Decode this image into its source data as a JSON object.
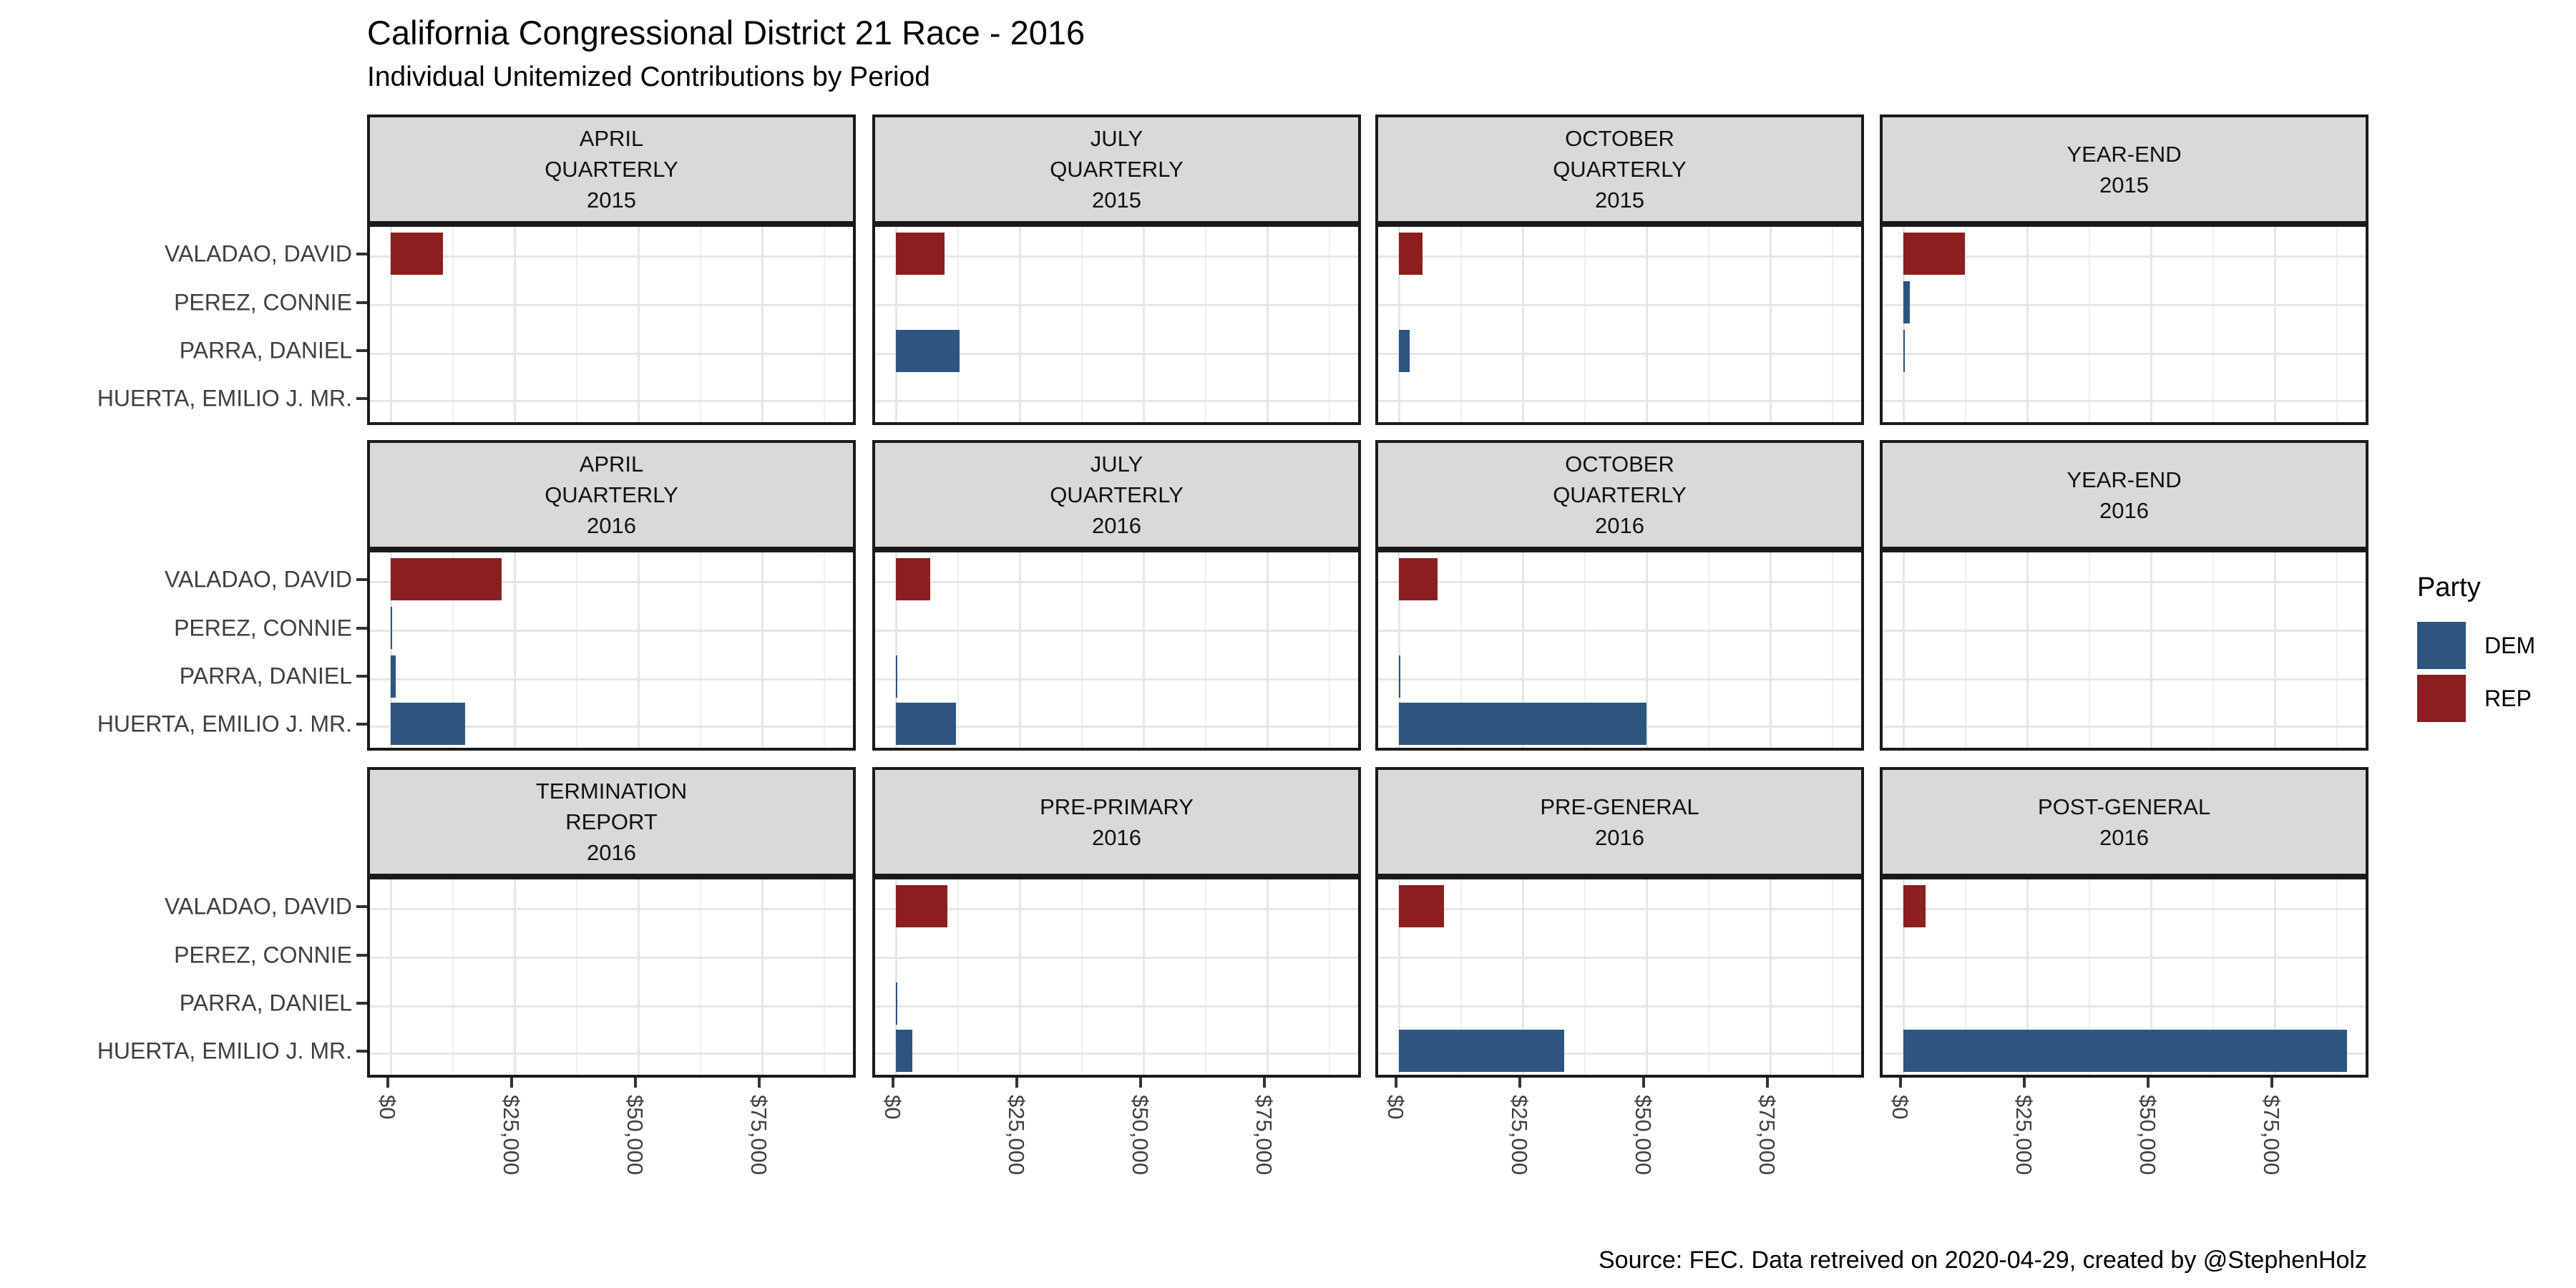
{
  "header": {
    "title": "California Congressional District 21 Race - 2016",
    "subtitle": "Individual Unitemized Contributions by Period"
  },
  "footer": {
    "source": "Source: FEC. Data retreived on 2020-04-29, created by @StephenHolz"
  },
  "legend": {
    "title": "Party",
    "entries": [
      {
        "label": "DEM",
        "color": "#2E5580"
      },
      {
        "label": "REP",
        "color": "#8B1E1E"
      }
    ]
  },
  "chart_data": {
    "type": "bar",
    "orientation": "horizontal",
    "title": "California Congressional District 21 Race - 2016",
    "subtitle": "Individual Unitemized Contributions by Period",
    "categories_y": [
      "VALADAO, DAVID",
      "PEREZ, CONNIE",
      "PARRA, DANIEL",
      "HUERTA, EMILIO J. MR."
    ],
    "party_colors": {
      "DEM": "#2E5580",
      "REP": "#8B1E1E"
    },
    "x_axis": {
      "tick_values": [
        0,
        25000,
        50000,
        75000
      ],
      "tick_labels": [
        "$0",
        "$25,000",
        "$50,000",
        "$75,000"
      ],
      "minor_step": 12500,
      "max": 94000,
      "grid": true
    },
    "legend_position": "right",
    "facets": [
      {
        "label_lines": [
          "APRIL",
          "QUARTERLY",
          "2015"
        ],
        "bars": [
          {
            "candidate": "VALADAO, DAVID",
            "party": "REP",
            "value": 10600
          }
        ]
      },
      {
        "label_lines": [
          "JULY",
          "QUARTERLY",
          "2015"
        ],
        "bars": [
          {
            "candidate": "VALADAO, DAVID",
            "party": "REP",
            "value": 9800
          },
          {
            "candidate": "PARRA, DANIEL",
            "party": "DEM",
            "value": 12900
          }
        ]
      },
      {
        "label_lines": [
          "OCTOBER",
          "QUARTERLY",
          "2015"
        ],
        "bars": [
          {
            "candidate": "VALADAO, DAVID",
            "party": "REP",
            "value": 4800
          },
          {
            "candidate": "PARRA, DANIEL",
            "party": "DEM",
            "value": 2200
          }
        ]
      },
      {
        "label_lines": [
          "YEAR-END",
          "2015"
        ],
        "bars": [
          {
            "candidate": "VALADAO, DAVID",
            "party": "REP",
            "value": 12400
          },
          {
            "candidate": "PEREZ, CONNIE",
            "party": "DEM",
            "value": 1350
          },
          {
            "candidate": "PARRA, DANIEL",
            "party": "DEM",
            "value": 350
          }
        ]
      },
      {
        "label_lines": [
          "APRIL",
          "QUARTERLY",
          "2016"
        ],
        "bars": [
          {
            "candidate": "VALADAO, DAVID",
            "party": "REP",
            "value": 22400
          },
          {
            "candidate": "PEREZ, CONNIE",
            "party": "DEM",
            "value": 250
          },
          {
            "candidate": "PARRA, DANIEL",
            "party": "DEM",
            "value": 1050
          },
          {
            "candidate": "HUERTA, EMILIO J. MR.",
            "party": "DEM",
            "value": 15000
          }
        ]
      },
      {
        "label_lines": [
          "JULY",
          "QUARTERLY",
          "2016"
        ],
        "bars": [
          {
            "candidate": "VALADAO, DAVID",
            "party": "REP",
            "value": 6900
          },
          {
            "candidate": "PARRA, DANIEL",
            "party": "DEM",
            "value": 200
          },
          {
            "candidate": "HUERTA, EMILIO J. MR.",
            "party": "DEM",
            "value": 12100
          }
        ]
      },
      {
        "label_lines": [
          "OCTOBER",
          "QUARTERLY",
          "2016"
        ],
        "bars": [
          {
            "candidate": "VALADAO, DAVID",
            "party": "REP",
            "value": 7800
          },
          {
            "candidate": "PARRA, DANIEL",
            "party": "DEM",
            "value": 200
          },
          {
            "candidate": "HUERTA, EMILIO J. MR.",
            "party": "DEM",
            "value": 50000
          }
        ]
      },
      {
        "label_lines": [
          "YEAR-END",
          "2016"
        ],
        "bars": []
      },
      {
        "label_lines": [
          "TERMINATION",
          "REPORT",
          "2016"
        ],
        "bars": []
      },
      {
        "label_lines": [
          "PRE-PRIMARY",
          "2016"
        ],
        "bars": [
          {
            "candidate": "VALADAO, DAVID",
            "party": "REP",
            "value": 10400
          },
          {
            "candidate": "PARRA, DANIEL",
            "party": "DEM",
            "value": 200
          },
          {
            "candidate": "HUERTA, EMILIO J. MR.",
            "party": "DEM",
            "value": 3300
          }
        ]
      },
      {
        "label_lines": [
          "PRE-GENERAL",
          "2016"
        ],
        "bars": [
          {
            "candidate": "VALADAO, DAVID",
            "party": "REP",
            "value": 9100
          },
          {
            "candidate": "HUERTA, EMILIO J. MR.",
            "party": "DEM",
            "value": 33400
          }
        ]
      },
      {
        "label_lines": [
          "POST-GENERAL",
          "2016"
        ],
        "bars": [
          {
            "candidate": "VALADAO, DAVID",
            "party": "REP",
            "value": 4500
          },
          {
            "candidate": "HUERTA, EMILIO J. MR.",
            "party": "DEM",
            "value": 89600
          }
        ]
      }
    ]
  }
}
